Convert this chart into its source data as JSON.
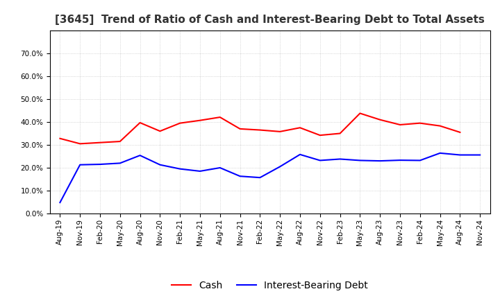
{
  "title": "[3645]  Trend of Ratio of Cash and Interest-Bearing Debt to Total Assets",
  "x_labels": [
    "Aug-19",
    "Nov-19",
    "Feb-20",
    "May-20",
    "Aug-20",
    "Nov-20",
    "Feb-21",
    "May-21",
    "Aug-21",
    "Nov-21",
    "Feb-22",
    "May-22",
    "Aug-22",
    "Nov-22",
    "Feb-23",
    "May-23",
    "Aug-23",
    "Nov-23",
    "Feb-24",
    "May-24",
    "Aug-24",
    "Nov-24"
  ],
  "cash": [
    0.328,
    0.305,
    0.31,
    0.315,
    0.397,
    0.36,
    0.395,
    0.407,
    0.421,
    0.37,
    0.365,
    0.358,
    0.375,
    0.342,
    0.35,
    0.438,
    0.41,
    0.388,
    0.395,
    0.383,
    0.355,
    null
  ],
  "debt": [
    0.048,
    0.213,
    0.215,
    0.22,
    0.254,
    0.213,
    0.195,
    0.185,
    0.2,
    0.163,
    0.157,
    0.205,
    0.258,
    0.232,
    0.238,
    0.232,
    0.23,
    0.233,
    0.232,
    0.264,
    0.256,
    0.256
  ],
  "cash_color": "#FF0000",
  "debt_color": "#0000FF",
  "ylim": [
    0.0,
    0.8
  ],
  "yticks": [
    0.0,
    0.1,
    0.2,
    0.3,
    0.4,
    0.5,
    0.6,
    0.7
  ],
  "background_color": "#FFFFFF",
  "grid_color": "#AAAAAA",
  "title_fontsize": 11,
  "title_color": "#333333",
  "tick_fontsize": 7.5,
  "legend_fontsize": 10
}
